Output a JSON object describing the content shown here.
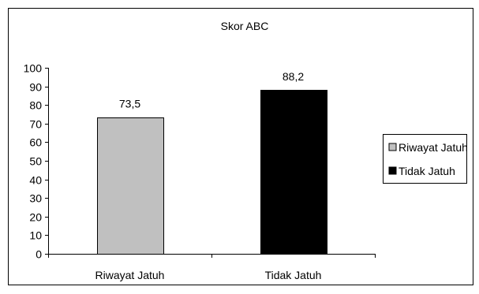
{
  "chart_data": {
    "type": "bar",
    "title": "Skor ABC",
    "categories": [
      "Riwayat Jatuh",
      "Tidak Jatuh"
    ],
    "values": [
      73.5,
      88.2
    ],
    "value_labels": [
      "73,5",
      "88,2"
    ],
    "colors": [
      "#c0c0c0",
      "#000000"
    ],
    "ylim": [
      0,
      100
    ],
    "yticks": [
      0,
      10,
      20,
      30,
      40,
      50,
      60,
      70,
      80,
      90,
      100
    ],
    "xlabel": "",
    "ylabel": "",
    "grid": false,
    "legend": {
      "placement": "right",
      "entries": [
        "Riwayat Jatuh",
        "Tidak Jatuh"
      ]
    }
  }
}
